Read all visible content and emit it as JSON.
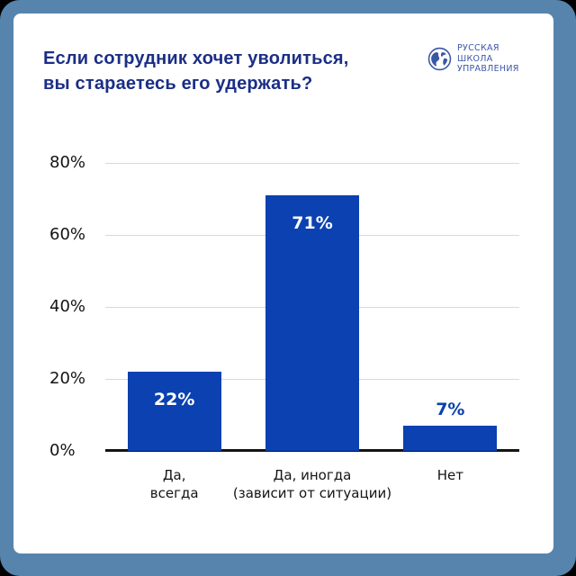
{
  "window": {
    "background": "#000000",
    "frame_color": "#5684ac",
    "card_color": "#ffffff"
  },
  "header": {
    "title_line1": "Если сотрудник хочет уволиться,",
    "title_line2": "вы стараетесь его удержать?",
    "title_color": "#1b2e85",
    "logo": {
      "icon": "globe-icon",
      "line1": "РУССКАЯ",
      "line2": "ШКОЛА",
      "line3": "УПРАВЛЕНИЯ",
      "color": "#3a57a5"
    }
  },
  "chart_data": {
    "type": "bar",
    "title": "Если сотрудник хочет уволиться, вы стараетесь его удержать?",
    "categories": [
      [
        "Да,",
        "всегда"
      ],
      [
        "Да, иногда",
        "(зависит от ситуации)"
      ],
      [
        "Нет"
      ]
    ],
    "values": [
      22,
      71,
      7
    ],
    "value_labels": [
      "22%",
      "71%",
      "7%"
    ],
    "yticks": [
      "80%",
      "60%",
      "40%",
      "20%",
      "0%"
    ],
    "ytick_values": [
      80,
      60,
      40,
      20,
      0
    ],
    "ylim": [
      0,
      80
    ],
    "grid": true,
    "legend": false,
    "bar_color": "#0b41b0",
    "value_label_inside_color": "#ffffff",
    "value_label_outside_color": "#0b41b0",
    "gridline_color": "#d8d8d8",
    "axis_color": "#141414",
    "tick_label_color": "#141414"
  }
}
